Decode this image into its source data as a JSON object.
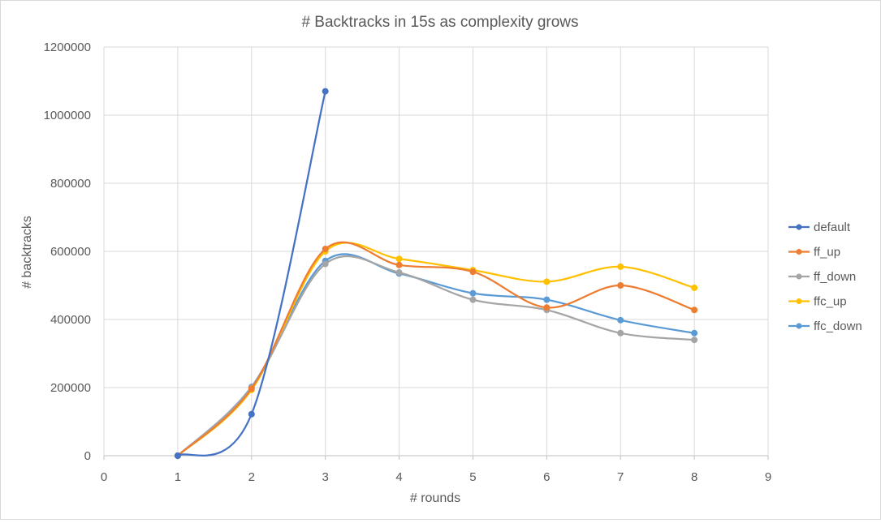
{
  "chart_data": {
    "type": "line",
    "title": "# Backtracks in 15s as complexity grows",
    "xlabel": "# rounds",
    "ylabel": "# backtracks",
    "xlim": [
      0,
      9
    ],
    "ylim": [
      0,
      1200000
    ],
    "xticks": [
      "0",
      "1",
      "2",
      "3",
      "4",
      "5",
      "6",
      "7",
      "8",
      "9"
    ],
    "yticks": [
      "0",
      "200000",
      "400000",
      "600000",
      "800000",
      "1000000",
      "1200000"
    ],
    "grid": true,
    "smooth": true,
    "legend_position": "right",
    "series": [
      {
        "name": "default",
        "color": "#4472C4",
        "x": [
          1,
          2,
          3
        ],
        "values": [
          0,
          122000,
          1070000
        ]
      },
      {
        "name": "ff_up",
        "color": "#ED7D31",
        "x": [
          1,
          2,
          3,
          4,
          5,
          6,
          7,
          8
        ],
        "values": [
          0,
          197000,
          607000,
          560000,
          540000,
          435000,
          500000,
          428000
        ]
      },
      {
        "name": "ff_down",
        "color": "#A5A5A5",
        "x": [
          1,
          2,
          3,
          4,
          5,
          6,
          7,
          8
        ],
        "values": [
          0,
          200000,
          563000,
          538000,
          458000,
          428000,
          360000,
          340000
        ]
      },
      {
        "name": "ffc_up",
        "color": "#FFC000",
        "x": [
          1,
          2,
          3,
          4,
          5,
          6,
          7,
          8
        ],
        "values": [
          0,
          193000,
          600000,
          578000,
          545000,
          511000,
          555000,
          493000
        ]
      },
      {
        "name": "ffc_down",
        "color": "#5B9BD5",
        "x": [
          1,
          2,
          3,
          4,
          5,
          6,
          7,
          8
        ],
        "values": [
          0,
          202000,
          572000,
          535000,
          477000,
          458000,
          398000,
          360000
        ]
      }
    ]
  }
}
